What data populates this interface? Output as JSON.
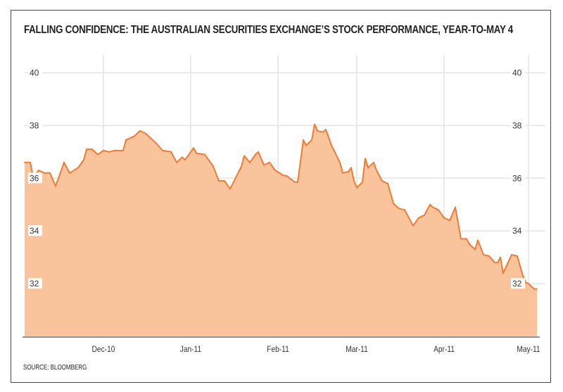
{
  "title": "FALLING CONFIDENCE: THE AUSTRALIAN SECURITIES EXCHANGE’S STOCK PERFORMANCE, YEAR-TO-MAY 4",
  "source": "SOURCE: BLOOMBERG",
  "chart_data": {
    "type": "area",
    "title": "FALLING CONFIDENCE: THE AUSTRALIAN SECURITIES EXCHANGE’S STOCK PERFORMANCE, YEAR-TO-MAY 4",
    "xlabel": "",
    "ylabel": "",
    "xlim": [
      "2010-11-03",
      "2011-05-04"
    ],
    "ylim": [
      30,
      41
    ],
    "grid": true,
    "y_axis_sides": [
      "left",
      "right"
    ],
    "x_ticks": [
      {
        "date": "2010-12-01",
        "label": "Dec-10"
      },
      {
        "date": "2011-01-01",
        "label": "Jan-11"
      },
      {
        "date": "2011-02-01",
        "label": "Feb-11"
      },
      {
        "date": "2011-03-01",
        "label": "Mar-11"
      },
      {
        "date": "2011-04-01",
        "label": "Apr-11"
      },
      {
        "date": "2011-05-01",
        "label": "May-11"
      }
    ],
    "y_ticks": [
      32,
      34,
      36,
      38,
      40
    ],
    "colors": {
      "line": "#ee7a33",
      "fill": "#f9c49c"
    },
    "x": [
      "2010-11-03",
      "2010-11-05",
      "2010-11-06",
      "2010-11-08",
      "2010-11-10",
      "2010-11-12",
      "2010-11-14",
      "2010-11-17",
      "2010-11-19",
      "2010-11-22",
      "2010-11-24",
      "2010-11-25",
      "2010-11-27",
      "2010-11-29",
      "2010-12-01",
      "2010-12-03",
      "2010-12-05",
      "2010-12-08",
      "2010-12-09",
      "2010-12-12",
      "2010-12-14",
      "2010-12-16",
      "2010-12-20",
      "2010-12-22",
      "2010-12-25",
      "2010-12-27",
      "2010-12-29",
      "2010-12-30",
      "2011-01-02",
      "2011-01-03",
      "2011-01-06",
      "2011-01-09",
      "2011-01-11",
      "2011-01-13",
      "2011-01-15",
      "2011-01-19",
      "2011-01-20",
      "2011-01-22",
      "2011-01-24",
      "2011-01-25",
      "2011-01-27",
      "2011-01-29",
      "2011-01-31",
      "2011-02-03",
      "2011-02-04",
      "2011-02-07",
      "2011-02-08",
      "2011-02-10",
      "2011-02-11",
      "2011-02-13",
      "2011-02-14",
      "2011-02-15",
      "2011-02-17",
      "2011-02-18",
      "2011-02-20",
      "2011-02-23",
      "2011-02-24",
      "2011-02-26",
      "2011-02-27",
      "2011-02-28",
      "2011-03-01",
      "2011-03-03",
      "2011-03-04",
      "2011-03-05",
      "2011-03-07",
      "2011-03-08",
      "2011-03-10",
      "2011-03-12",
      "2011-03-14",
      "2011-03-16",
      "2011-03-18",
      "2011-03-21",
      "2011-03-23",
      "2011-03-25",
      "2011-03-27",
      "2011-03-28",
      "2011-03-30",
      "2011-04-01",
      "2011-04-03",
      "2011-04-05",
      "2011-04-07",
      "2011-04-09",
      "2011-04-10",
      "2011-04-12",
      "2011-04-13",
      "2011-04-15",
      "2011-04-17",
      "2011-04-19",
      "2011-04-20",
      "2011-04-21",
      "2011-04-22",
      "2011-04-25",
      "2011-04-27",
      "2011-04-29",
      "2011-04-30",
      "2011-05-01",
      "2011-05-03",
      "2011-05-04"
    ],
    "values": [
      36.6,
      36.6,
      36.05,
      36.3,
      36.2,
      36.2,
      35.7,
      36.6,
      36.2,
      36.4,
      36.7,
      37.1,
      37.1,
      36.9,
      37.05,
      37.0,
      37.05,
      37.05,
      37.45,
      37.6,
      37.8,
      37.7,
      37.3,
      37.05,
      37.0,
      36.6,
      36.8,
      36.7,
      37.15,
      36.95,
      36.9,
      36.45,
      35.9,
      35.9,
      35.6,
      36.45,
      36.85,
      36.6,
      36.9,
      37.0,
      36.5,
      36.6,
      36.3,
      36.1,
      36.1,
      35.85,
      35.85,
      37.45,
      37.25,
      37.45,
      38.05,
      37.8,
      37.75,
      37.85,
      37.25,
      36.6,
      36.2,
      36.25,
      36.4,
      35.9,
      35.65,
      35.85,
      36.75,
      36.4,
      36.6,
      36.3,
      35.9,
      35.8,
      35.05,
      34.85,
      34.8,
      34.2,
      34.5,
      34.6,
      35.0,
      34.9,
      34.8,
      34.5,
      34.4,
      34.9,
      33.7,
      33.7,
      33.5,
      33.3,
      33.65,
      33.1,
      33.05,
      32.8,
      32.8,
      33.0,
      32.4,
      33.1,
      33.05,
      32.3,
      32.05,
      32.0,
      31.8,
      31.8
    ]
  }
}
